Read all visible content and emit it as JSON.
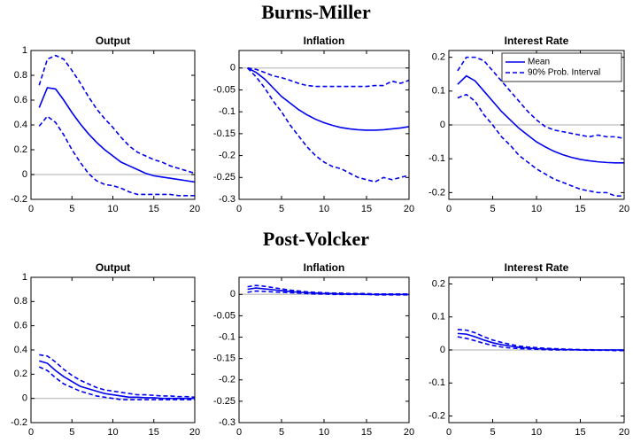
{
  "section_titles": [
    "Burns-Miller",
    "Post-Volcker"
  ],
  "chart_data": [
    {
      "type": "line",
      "title": "Output",
      "x": [
        1,
        2,
        3,
        4,
        5,
        6,
        7,
        8,
        9,
        10,
        11,
        12,
        13,
        14,
        15,
        16,
        17,
        18,
        19,
        20
      ],
      "xlim": [
        0,
        20
      ],
      "xticks": [
        0,
        5,
        10,
        15,
        20
      ],
      "ylim": [
        -0.2,
        1
      ],
      "yticks": [
        -0.2,
        0,
        0.2,
        0.4,
        0.6,
        0.8,
        1
      ],
      "series": [
        {
          "color": "#0000ee",
          "linestyle": "solid",
          "values": [
            0.54,
            0.7,
            0.69,
            0.6,
            0.5,
            0.41,
            0.33,
            0.26,
            0.2,
            0.15,
            0.1,
            0.07,
            0.04,
            0.01,
            -0.01,
            -0.02,
            -0.03,
            -0.04,
            -0.05,
            -0.06
          ]
        },
        {
          "color": "#0000ee",
          "linestyle": "dashed",
          "values": [
            0.72,
            0.93,
            0.96,
            0.93,
            0.84,
            0.74,
            0.63,
            0.53,
            0.45,
            0.38,
            0.3,
            0.23,
            0.18,
            0.15,
            0.12,
            0.1,
            0.07,
            0.05,
            0.03,
            0.01
          ]
        },
        {
          "color": "#0000ee",
          "linestyle": "dashed",
          "values": [
            0.39,
            0.47,
            0.42,
            0.32,
            0.2,
            0.1,
            0.01,
            -0.05,
            -0.08,
            -0.09,
            -0.11,
            -0.14,
            -0.16,
            -0.16,
            -0.16,
            -0.16,
            -0.16,
            -0.17,
            -0.17,
            -0.17
          ]
        }
      ]
    },
    {
      "type": "line",
      "title": "Inflation",
      "x": [
        1,
        2,
        3,
        4,
        5,
        6,
        7,
        8,
        9,
        10,
        11,
        12,
        13,
        14,
        15,
        16,
        17,
        18,
        19,
        20
      ],
      "xlim": [
        0,
        20
      ],
      "xticks": [
        0,
        5,
        10,
        15,
        20
      ],
      "ylim": [
        -0.3,
        0.04
      ],
      "yticks": [
        -0.3,
        -0.25,
        -0.2,
        -0.15,
        -0.1,
        -0.05,
        0
      ],
      "series": [
        {
          "color": "#0000ee",
          "linestyle": "solid",
          "values": [
            0,
            -0.01,
            -0.025,
            -0.045,
            -0.065,
            -0.08,
            -0.095,
            -0.107,
            -0.117,
            -0.125,
            -0.131,
            -0.136,
            -0.139,
            -0.141,
            -0.142,
            -0.142,
            -0.141,
            -0.139,
            -0.137,
            -0.134
          ]
        },
        {
          "color": "#0000ee",
          "linestyle": "dashed",
          "values": [
            0,
            -0.003,
            -0.01,
            -0.018,
            -0.022,
            -0.028,
            -0.035,
            -0.04,
            -0.042,
            -0.042,
            -0.042,
            -0.042,
            -0.042,
            -0.042,
            -0.042,
            -0.04,
            -0.04,
            -0.03,
            -0.035,
            -0.028
          ]
        },
        {
          "color": "#0000ee",
          "linestyle": "dashed",
          "values": [
            0,
            -0.02,
            -0.045,
            -0.075,
            -0.1,
            -0.13,
            -0.155,
            -0.18,
            -0.2,
            -0.215,
            -0.225,
            -0.23,
            -0.24,
            -0.25,
            -0.255,
            -0.26,
            -0.25,
            -0.255,
            -0.25,
            -0.245
          ]
        }
      ]
    },
    {
      "type": "line",
      "title": "Interest Rate",
      "legend": "upper right",
      "x": [
        1,
        2,
        3,
        4,
        5,
        6,
        7,
        8,
        9,
        10,
        11,
        12,
        13,
        14,
        15,
        16,
        17,
        18,
        19,
        20
      ],
      "xlim": [
        0,
        20
      ],
      "xticks": [
        0,
        5,
        10,
        15,
        20
      ],
      "ylim": [
        -0.22,
        0.22
      ],
      "yticks": [
        -0.2,
        -0.1,
        0,
        0.1,
        0.2
      ],
      "series": [
        {
          "name": "Mean",
          "color": "#0000ee",
          "linestyle": "solid",
          "values": [
            0.12,
            0.145,
            0.13,
            0.1,
            0.07,
            0.04,
            0.015,
            -0.01,
            -0.03,
            -0.05,
            -0.065,
            -0.078,
            -0.088,
            -0.096,
            -0.102,
            -0.106,
            -0.109,
            -0.111,
            -0.112,
            -0.112
          ]
        },
        {
          "name": "90% Prob. Interval",
          "color": "#0000ee",
          "linestyle": "dashed",
          "values": [
            0.16,
            0.2,
            0.2,
            0.19,
            0.16,
            0.13,
            0.1,
            0.07,
            0.04,
            0.015,
            -0.005,
            -0.015,
            -0.02,
            -0.025,
            -0.03,
            -0.035,
            -0.03,
            -0.035,
            -0.035,
            -0.04
          ]
        },
        {
          "color": "#0000ee",
          "linestyle": "dashed",
          "values": [
            0.08,
            0.09,
            0.07,
            0.03,
            0,
            -0.035,
            -0.06,
            -0.09,
            -0.11,
            -0.13,
            -0.145,
            -0.16,
            -0.17,
            -0.18,
            -0.19,
            -0.195,
            -0.2,
            -0.2,
            -0.21,
            -0.21
          ]
        }
      ]
    },
    {
      "type": "line",
      "title": "Output",
      "x": [
        1,
        2,
        3,
        4,
        5,
        6,
        7,
        8,
        9,
        10,
        11,
        12,
        13,
        14,
        15,
        16,
        17,
        18,
        19,
        20
      ],
      "xlim": [
        0,
        20
      ],
      "xticks": [
        0,
        5,
        10,
        15,
        20
      ],
      "ylim": [
        -0.2,
        1
      ],
      "yticks": [
        -0.2,
        0,
        0.2,
        0.4,
        0.6,
        0.8,
        1
      ],
      "series": [
        {
          "color": "#0000ee",
          "linestyle": "solid",
          "values": [
            0.31,
            0.29,
            0.23,
            0.18,
            0.14,
            0.1,
            0.08,
            0.06,
            0.04,
            0.03,
            0.02,
            0.01,
            0.01,
            0.005,
            0.005,
            0,
            0,
            0,
            0,
            0
          ]
        },
        {
          "color": "#0000ee",
          "linestyle": "dashed",
          "values": [
            0.36,
            0.35,
            0.3,
            0.24,
            0.19,
            0.15,
            0.12,
            0.09,
            0.07,
            0.06,
            0.05,
            0.04,
            0.03,
            0.03,
            0.025,
            0.02,
            0.02,
            0.015,
            0.015,
            0.01
          ]
        },
        {
          "color": "#0000ee",
          "linestyle": "dashed",
          "values": [
            0.26,
            0.23,
            0.17,
            0.12,
            0.09,
            0.06,
            0.04,
            0.02,
            0.01,
            0,
            -0.01,
            -0.01,
            -0.01,
            -0.01,
            -0.01,
            -0.01,
            -0.01,
            -0.01,
            -0.01,
            -0.01
          ]
        }
      ]
    },
    {
      "type": "line",
      "title": "Inflation",
      "x": [
        1,
        2,
        3,
        4,
        5,
        6,
        7,
        8,
        9,
        10,
        11,
        12,
        13,
        14,
        15,
        16,
        17,
        18,
        19,
        20
      ],
      "xlim": [
        0,
        20
      ],
      "xticks": [
        0,
        5,
        10,
        15,
        20
      ],
      "ylim": [
        -0.3,
        0.04
      ],
      "yticks": [
        -0.3,
        -0.25,
        -0.2,
        -0.15,
        -0.1,
        -0.05,
        0
      ],
      "series": [
        {
          "color": "#0000ee",
          "linestyle": "solid",
          "values": [
            0.012,
            0.015,
            0.013,
            0.011,
            0.009,
            0.007,
            0.005,
            0.004,
            0.003,
            0.002,
            0.002,
            0.001,
            0.001,
            0.001,
            0,
            0,
            0,
            0,
            0,
            0
          ]
        },
        {
          "color": "#0000ee",
          "linestyle": "dashed",
          "values": [
            0.018,
            0.021,
            0.019,
            0.016,
            0.013,
            0.01,
            0.008,
            0.006,
            0.005,
            0.004,
            0.003,
            0.003,
            0.002,
            0.002,
            0.002,
            0.001,
            0.001,
            0.001,
            0.001,
            0.001
          ]
        },
        {
          "color": "#0000ee",
          "linestyle": "dashed",
          "values": [
            0.005,
            0.008,
            0.007,
            0.006,
            0.005,
            0.004,
            0.003,
            0.002,
            0.001,
            0.001,
            0,
            0,
            0,
            0,
            0,
            -0.001,
            -0.001,
            -0.001,
            -0.001,
            -0.001
          ]
        }
      ]
    },
    {
      "type": "line",
      "title": "Interest Rate",
      "x": [
        1,
        2,
        3,
        4,
        5,
        6,
        7,
        8,
        9,
        10,
        11,
        12,
        13,
        14,
        15,
        16,
        17,
        18,
        19,
        20
      ],
      "xlim": [
        0,
        20
      ],
      "xticks": [
        0,
        5,
        10,
        15,
        20
      ],
      "ylim": [
        -0.22,
        0.22
      ],
      "yticks": [
        -0.2,
        -0.1,
        0,
        0.1,
        0.2
      ],
      "series": [
        {
          "color": "#0000ee",
          "linestyle": "solid",
          "values": [
            0.05,
            0.048,
            0.04,
            0.03,
            0.022,
            0.016,
            0.012,
            0.008,
            0.006,
            0.004,
            0.003,
            0.002,
            0.001,
            0.001,
            0,
            0,
            0,
            0,
            0,
            0
          ]
        },
        {
          "color": "#0000ee",
          "linestyle": "dashed",
          "values": [
            0.062,
            0.06,
            0.052,
            0.04,
            0.03,
            0.023,
            0.017,
            0.012,
            0.009,
            0.007,
            0.005,
            0.004,
            0.003,
            0.002,
            0.001,
            0.001,
            0,
            0,
            0,
            0
          ]
        },
        {
          "color": "#0000ee",
          "linestyle": "dashed",
          "values": [
            0.04,
            0.035,
            0.028,
            0.02,
            0.014,
            0.009,
            0.006,
            0.004,
            0.003,
            0.002,
            0.001,
            0,
            0,
            0,
            0,
            -0.001,
            -0.001,
            -0.001,
            -0.002,
            -0.002
          ]
        }
      ]
    }
  ]
}
